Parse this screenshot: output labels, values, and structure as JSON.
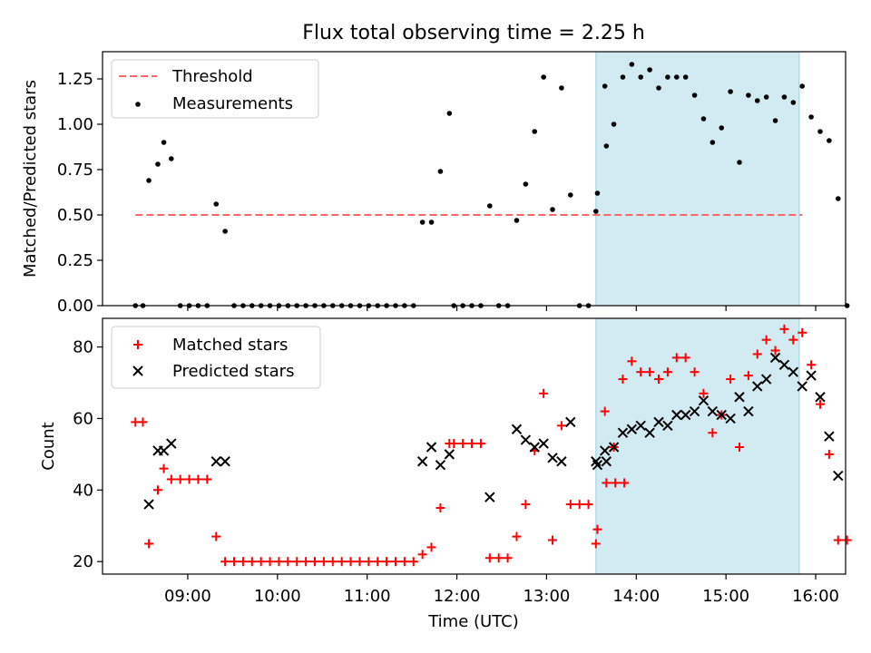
{
  "title": "Flux total observing time = 2.25 h",
  "chart_data": [
    {
      "type": "scatter",
      "ylabel": "Matched/Predicted stars",
      "xlabel": "",
      "xlim": [
        "08:03",
        "16:20"
      ],
      "ylim": [
        0,
        1.4
      ],
      "yticks": [
        "0.00",
        "0.25",
        "0.50",
        "0.75",
        "1.00",
        "1.25"
      ],
      "legend_loc": "upper-left",
      "grid": false,
      "highlight_span": [
        "13:33",
        "15:49"
      ],
      "highlight_color": "#add8e6",
      "threshold": {
        "name": "Threshold",
        "y": 0.5,
        "x": [
          "08:25",
          "15:51"
        ],
        "color": "#ff6666"
      },
      "series": [
        {
          "name": "Measurements",
          "color": "#000000",
          "points": [
            [
              "08:25",
              0
            ],
            [
              "08:30",
              0
            ],
            [
              "08:34",
              0.69
            ],
            [
              "08:40",
              0.78
            ],
            [
              "08:44",
              0.9
            ],
            [
              "08:49",
              0.81
            ],
            [
              "08:55",
              0
            ],
            [
              "09:01",
              0
            ],
            [
              "09:07",
              0
            ],
            [
              "09:13",
              0
            ],
            [
              "09:19",
              0.56
            ],
            [
              "09:25",
              0.41
            ],
            [
              "09:31",
              0
            ],
            [
              "09:37",
              0
            ],
            [
              "09:43",
              0
            ],
            [
              "09:49",
              0
            ],
            [
              "09:55",
              0
            ],
            [
              "10:01",
              0
            ],
            [
              "10:07",
              0
            ],
            [
              "10:13",
              0
            ],
            [
              "10:19",
              0
            ],
            [
              "10:25",
              0
            ],
            [
              "10:31",
              0
            ],
            [
              "10:37",
              0
            ],
            [
              "10:43",
              0
            ],
            [
              "10:49",
              0
            ],
            [
              "10:55",
              0
            ],
            [
              "11:01",
              0
            ],
            [
              "11:07",
              0
            ],
            [
              "11:13",
              0
            ],
            [
              "11:19",
              0
            ],
            [
              "11:25",
              0
            ],
            [
              "11:31",
              0
            ],
            [
              "11:37",
              0.46
            ],
            [
              "11:43",
              0.46
            ],
            [
              "11:49",
              0.74
            ],
            [
              "11:55",
              1.06
            ],
            [
              "11:58",
              0
            ],
            [
              "12:04",
              0
            ],
            [
              "12:10",
              0
            ],
            [
              "12:16",
              0
            ],
            [
              "12:22",
              0.55
            ],
            [
              "12:28",
              0
            ],
            [
              "12:34",
              0
            ],
            [
              "12:40",
              0.47
            ],
            [
              "12:46",
              0.67
            ],
            [
              "12:52",
              0.96
            ],
            [
              "12:58",
              1.26
            ],
            [
              "13:04",
              0.53
            ],
            [
              "13:10",
              1.2
            ],
            [
              "13:16",
              0.61
            ],
            [
              "13:22",
              0
            ],
            [
              "13:28",
              0
            ],
            [
              "13:34",
              0.62
            ],
            [
              "13:40",
              0.88
            ],
            [
              "13:33",
              0.52
            ],
            [
              "13:39",
              1.21
            ],
            [
              "13:45",
              1.0
            ],
            [
              "13:51",
              1.26
            ],
            [
              "13:57",
              1.33
            ],
            [
              "14:03",
              1.26
            ],
            [
              "14:09",
              1.3
            ],
            [
              "14:15",
              1.2
            ],
            [
              "14:21",
              1.26
            ],
            [
              "14:27",
              1.26
            ],
            [
              "14:33",
              1.26
            ],
            [
              "14:39",
              1.16
            ],
            [
              "14:45",
              1.03
            ],
            [
              "14:51",
              0.9
            ],
            [
              "14:57",
              0.98
            ],
            [
              "15:03",
              1.18
            ],
            [
              "15:09",
              0.79
            ],
            [
              "15:15",
              1.16
            ],
            [
              "15:21",
              1.13
            ],
            [
              "15:27",
              1.15
            ],
            [
              "15:33",
              1.02
            ],
            [
              "15:39",
              1.15
            ],
            [
              "15:45",
              1.12
            ],
            [
              "15:51",
              1.21
            ],
            [
              "15:57",
              1.04
            ],
            [
              "16:03",
              0.96
            ],
            [
              "16:09",
              0.91
            ],
            [
              "16:15",
              0.59
            ],
            [
              "16:21",
              0
            ]
          ]
        }
      ]
    },
    {
      "type": "scatter",
      "ylabel": "Count",
      "xlabel": "Time (UTC)",
      "xlim": [
        "08:03",
        "16:20"
      ],
      "ylim": [
        16.5,
        88
      ],
      "xticks": [
        "09:00",
        "10:00",
        "11:00",
        "12:00",
        "13:00",
        "14:00",
        "15:00",
        "16:00"
      ],
      "yticks": [
        "20",
        "40",
        "60",
        "80"
      ],
      "legend_loc": "upper-left",
      "grid": false,
      "highlight_span": [
        "13:33",
        "15:49"
      ],
      "highlight_color": "#add8e6",
      "series": [
        {
          "name": "Matched stars",
          "marker": "+",
          "color": "#ff0000",
          "points": [
            [
              "08:25",
              59
            ],
            [
              "08:30",
              59
            ],
            [
              "08:34",
              25
            ],
            [
              "08:40",
              40
            ],
            [
              "08:44",
              46
            ],
            [
              "08:49",
              43
            ],
            [
              "08:55",
              43
            ],
            [
              "09:01",
              43
            ],
            [
              "09:07",
              43
            ],
            [
              "09:13",
              43
            ],
            [
              "09:19",
              27
            ],
            [
              "09:25",
              20
            ],
            [
              "09:31",
              20
            ],
            [
              "09:37",
              20
            ],
            [
              "09:43",
              20
            ],
            [
              "09:49",
              20
            ],
            [
              "09:55",
              20
            ],
            [
              "10:01",
              20
            ],
            [
              "10:07",
              20
            ],
            [
              "10:13",
              20
            ],
            [
              "10:19",
              20
            ],
            [
              "10:25",
              20
            ],
            [
              "10:31",
              20
            ],
            [
              "10:37",
              20
            ],
            [
              "10:43",
              20
            ],
            [
              "10:49",
              20
            ],
            [
              "10:55",
              20
            ],
            [
              "11:01",
              20
            ],
            [
              "11:07",
              20
            ],
            [
              "11:13",
              20
            ],
            [
              "11:19",
              20
            ],
            [
              "11:25",
              20
            ],
            [
              "11:31",
              20
            ],
            [
              "11:37",
              22
            ],
            [
              "11:43",
              24
            ],
            [
              "11:49",
              35
            ],
            [
              "11:55",
              53
            ],
            [
              "11:58",
              53
            ],
            [
              "12:04",
              53
            ],
            [
              "12:10",
              53
            ],
            [
              "12:16",
              53
            ],
            [
              "12:22",
              21
            ],
            [
              "12:28",
              21
            ],
            [
              "12:34",
              21
            ],
            [
              "12:40",
              27
            ],
            [
              "12:46",
              36
            ],
            [
              "12:52",
              51
            ],
            [
              "12:58",
              67
            ],
            [
              "13:04",
              26
            ],
            [
              "13:10",
              58
            ],
            [
              "13:16",
              36
            ],
            [
              "13:22",
              36
            ],
            [
              "13:28",
              36
            ],
            [
              "13:34",
              29
            ],
            [
              "13:40",
              42
            ],
            [
              "13:46",
              42
            ],
            [
              "13:52",
              42
            ],
            [
              "13:33",
              25
            ],
            [
              "13:39",
              62
            ],
            [
              "13:45",
              52
            ],
            [
              "13:51",
              71
            ],
            [
              "13:57",
              76
            ],
            [
              "14:03",
              73
            ],
            [
              "14:09",
              73
            ],
            [
              "14:15",
              71
            ],
            [
              "14:21",
              73
            ],
            [
              "14:27",
              77
            ],
            [
              "14:33",
              77
            ],
            [
              "14:39",
              73
            ],
            [
              "14:45",
              67
            ],
            [
              "14:51",
              56
            ],
            [
              "14:57",
              61
            ],
            [
              "15:03",
              71
            ],
            [
              "15:09",
              52
            ],
            [
              "15:15",
              72
            ],
            [
              "15:21",
              78
            ],
            [
              "15:27",
              82
            ],
            [
              "15:33",
              79
            ],
            [
              "15:39",
              85
            ],
            [
              "15:45",
              82
            ],
            [
              "15:51",
              84
            ],
            [
              "15:57",
              75
            ],
            [
              "16:03",
              64
            ],
            [
              "16:09",
              50
            ],
            [
              "16:15",
              26
            ],
            [
              "16:21",
              26
            ]
          ]
        },
        {
          "name": "Predicted stars",
          "marker": "x",
          "color": "#000000",
          "points": [
            [
              "08:34",
              36
            ],
            [
              "08:40",
              51
            ],
            [
              "08:44",
              51
            ],
            [
              "08:49",
              53
            ],
            [
              "09:19",
              48
            ],
            [
              "09:25",
              48
            ],
            [
              "11:37",
              48
            ],
            [
              "11:43",
              52
            ],
            [
              "11:49",
              47
            ],
            [
              "11:55",
              50
            ],
            [
              "12:22",
              38
            ],
            [
              "12:40",
              57
            ],
            [
              "12:46",
              54
            ],
            [
              "12:52",
              52
            ],
            [
              "12:58",
              53
            ],
            [
              "13:04",
              49
            ],
            [
              "13:10",
              48
            ],
            [
              "13:16",
              59
            ],
            [
              "13:34",
              47
            ],
            [
              "13:40",
              48
            ],
            [
              "13:33",
              48
            ],
            [
              "13:39",
              51
            ],
            [
              "13:45",
              52
            ],
            [
              "13:51",
              56
            ],
            [
              "13:57",
              57
            ],
            [
              "14:03",
              58
            ],
            [
              "14:09",
              56
            ],
            [
              "14:15",
              59
            ],
            [
              "14:21",
              58
            ],
            [
              "14:27",
              61
            ],
            [
              "14:33",
              61
            ],
            [
              "14:39",
              62
            ],
            [
              "14:45",
              65
            ],
            [
              "14:51",
              62
            ],
            [
              "14:57",
              61
            ],
            [
              "15:03",
              60
            ],
            [
              "15:09",
              66
            ],
            [
              "15:15",
              62
            ],
            [
              "15:21",
              69
            ],
            [
              "15:27",
              71
            ],
            [
              "15:33",
              77
            ],
            [
              "15:39",
              75
            ],
            [
              "15:45",
              73
            ],
            [
              "15:51",
              69
            ],
            [
              "15:57",
              72
            ],
            [
              "16:03",
              66
            ],
            [
              "16:09",
              55
            ],
            [
              "16:15",
              44
            ]
          ]
        }
      ]
    }
  ]
}
